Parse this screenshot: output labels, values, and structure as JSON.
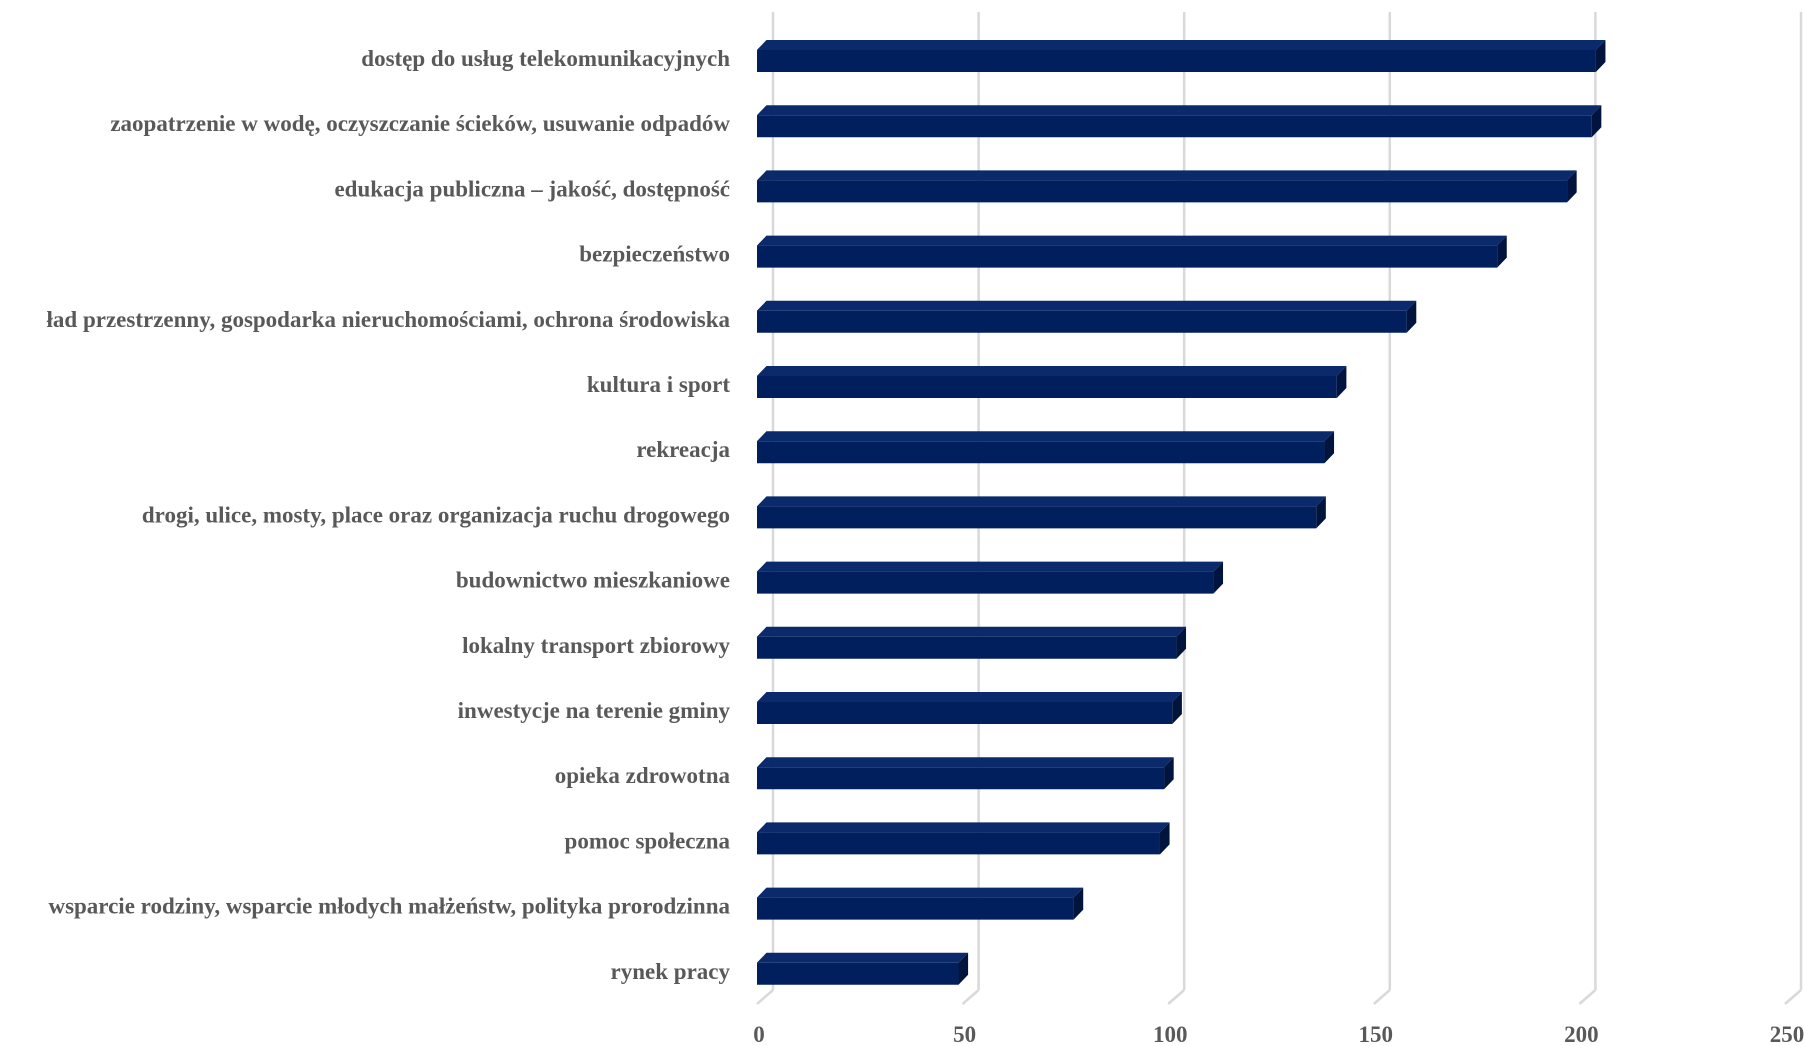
{
  "chart_data": {
    "type": "bar",
    "orientation": "horizontal",
    "categories": [
      "dostęp do usług telekomunikacyjnych",
      "zaopatrzenie w wodę, oczyszczanie ścieków, usuwanie odpadów",
      "edukacja publiczna – jakość, dostępność",
      "bezpieczeństwo",
      "ład przestrzenny, gospodarka nieruchomościami, ochrona środowiska",
      "kultura i sport",
      "rekreacja",
      "drogi, ulice, mosty, place oraz organizacja ruchu drogowego",
      "budownictwo mieszkaniowe",
      "lokalny transport zbiorowy",
      "inwestycje na terenie gminy",
      "opieka zdrowotna",
      "pomoc społeczna",
      "wsparcie rodziny, wsparcie młodych małżeństw, polityka prorodzinna",
      "rynek pracy"
    ],
    "values": [
      204,
      203,
      197,
      180,
      158,
      141,
      138,
      136,
      111,
      102,
      101,
      99,
      98,
      77,
      49
    ],
    "xlim": [
      0,
      250
    ],
    "xticks": [
      "0",
      "50",
      "100",
      "150",
      "200",
      "250"
    ],
    "title": "",
    "xlabel": "",
    "ylabel": "",
    "grid": true,
    "legend": "none",
    "colors": {
      "bar_front": "#001f5c",
      "bar_top": "#0b2a6b",
      "bar_side": "#00143d",
      "grid": "#d9d9d9",
      "text": "#595959"
    }
  }
}
